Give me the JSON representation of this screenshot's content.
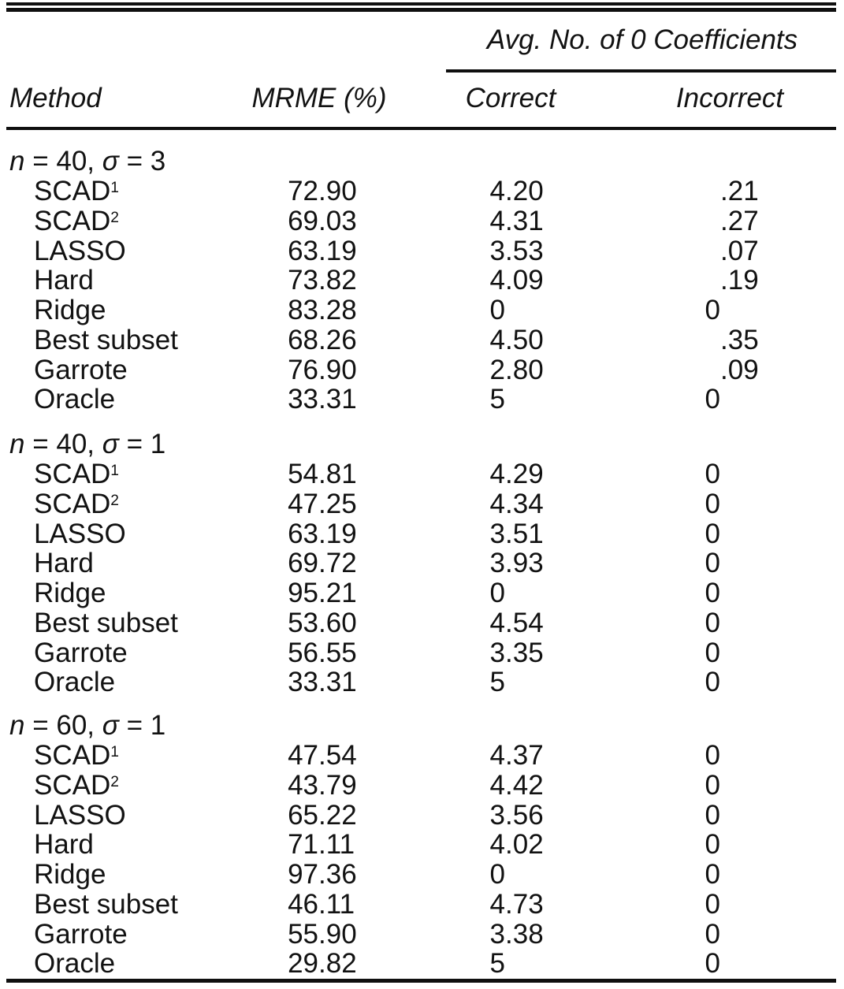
{
  "colors": {
    "background": "#ffffff",
    "text": "#121212",
    "rule": "#0f0f0f"
  },
  "table": {
    "spanner": "Avg. No. of 0 Coefficients",
    "columns": {
      "method": "Method",
      "mrme": "MRME (%)",
      "correct": "Correct",
      "incorrect": "Incorrect"
    },
    "sections": [
      {
        "label_parts": [
          {
            "text": "n",
            "italic": true
          },
          {
            "text": " = 40, ",
            "italic": false
          },
          {
            "text": "σ",
            "italic": true
          },
          {
            "text": " = 3",
            "italic": false
          }
        ],
        "rows": [
          {
            "method": "SCAD",
            "sup": "1",
            "mrme": "72.90",
            "correct": "4.20",
            "incorrect": ".21"
          },
          {
            "method": "SCAD",
            "sup": "2",
            "mrme": "69.03",
            "correct": "4.31",
            "incorrect": ".27"
          },
          {
            "method": "LASSO",
            "sup": "",
            "mrme": "63.19",
            "correct": "3.53",
            "incorrect": ".07"
          },
          {
            "method": "Hard",
            "sup": "",
            "mrme": "73.82",
            "correct": "4.09",
            "incorrect": ".19"
          },
          {
            "method": "Ridge",
            "sup": "",
            "mrme": "83.28",
            "correct": "0",
            "incorrect": "0"
          },
          {
            "method": "Best subset",
            "sup": "",
            "mrme": "68.26",
            "correct": "4.50",
            "incorrect": ".35"
          },
          {
            "method": "Garrote",
            "sup": "",
            "mrme": "76.90",
            "correct": "2.80",
            "incorrect": ".09"
          },
          {
            "method": "Oracle",
            "sup": "",
            "mrme": "33.31",
            "correct": "5",
            "incorrect": "0"
          }
        ]
      },
      {
        "label_parts": [
          {
            "text": "n",
            "italic": true
          },
          {
            "text": " = 40, ",
            "italic": false
          },
          {
            "text": "σ",
            "italic": true
          },
          {
            "text": " = 1",
            "italic": false
          }
        ],
        "rows": [
          {
            "method": "SCAD",
            "sup": "1",
            "mrme": "54.81",
            "correct": "4.29",
            "incorrect": "0"
          },
          {
            "method": "SCAD",
            "sup": "2",
            "mrme": "47.25",
            "correct": "4.34",
            "incorrect": "0"
          },
          {
            "method": "LASSO",
            "sup": "",
            "mrme": "63.19",
            "correct": "3.51",
            "incorrect": "0"
          },
          {
            "method": "Hard",
            "sup": "",
            "mrme": "69.72",
            "correct": "3.93",
            "incorrect": "0"
          },
          {
            "method": "Ridge",
            "sup": "",
            "mrme": "95.21",
            "correct": "0",
            "incorrect": "0"
          },
          {
            "method": "Best subset",
            "sup": "",
            "mrme": "53.60",
            "correct": "4.54",
            "incorrect": "0"
          },
          {
            "method": "Garrote",
            "sup": "",
            "mrme": "56.55",
            "correct": "3.35",
            "incorrect": "0"
          },
          {
            "method": "Oracle",
            "sup": "",
            "mrme": "33.31",
            "correct": "5",
            "incorrect": "0"
          }
        ]
      },
      {
        "label_parts": [
          {
            "text": "n",
            "italic": true
          },
          {
            "text": " = 60, ",
            "italic": false
          },
          {
            "text": "σ",
            "italic": true
          },
          {
            "text": " = 1",
            "italic": false
          }
        ],
        "rows": [
          {
            "method": "SCAD",
            "sup": "1",
            "mrme": "47.54",
            "correct": "4.37",
            "incorrect": "0"
          },
          {
            "method": "SCAD",
            "sup": "2",
            "mrme": "43.79",
            "correct": "4.42",
            "incorrect": "0"
          },
          {
            "method": "LASSO",
            "sup": "",
            "mrme": "65.22",
            "correct": "3.56",
            "incorrect": "0"
          },
          {
            "method": "Hard",
            "sup": "",
            "mrme": "71.11",
            "correct": "4.02",
            "incorrect": "0"
          },
          {
            "method": "Ridge",
            "sup": "",
            "mrme": "97.36",
            "correct": "0",
            "incorrect": "0"
          },
          {
            "method": "Best subset",
            "sup": "",
            "mrme": "46.11",
            "correct": "4.73",
            "incorrect": "0"
          },
          {
            "method": "Garrote",
            "sup": "",
            "mrme": "55.90",
            "correct": "3.38",
            "incorrect": "0"
          },
          {
            "method": "Oracle",
            "sup": "",
            "mrme": "29.82",
            "correct": "5",
            "incorrect": "0"
          }
        ]
      }
    ]
  }
}
